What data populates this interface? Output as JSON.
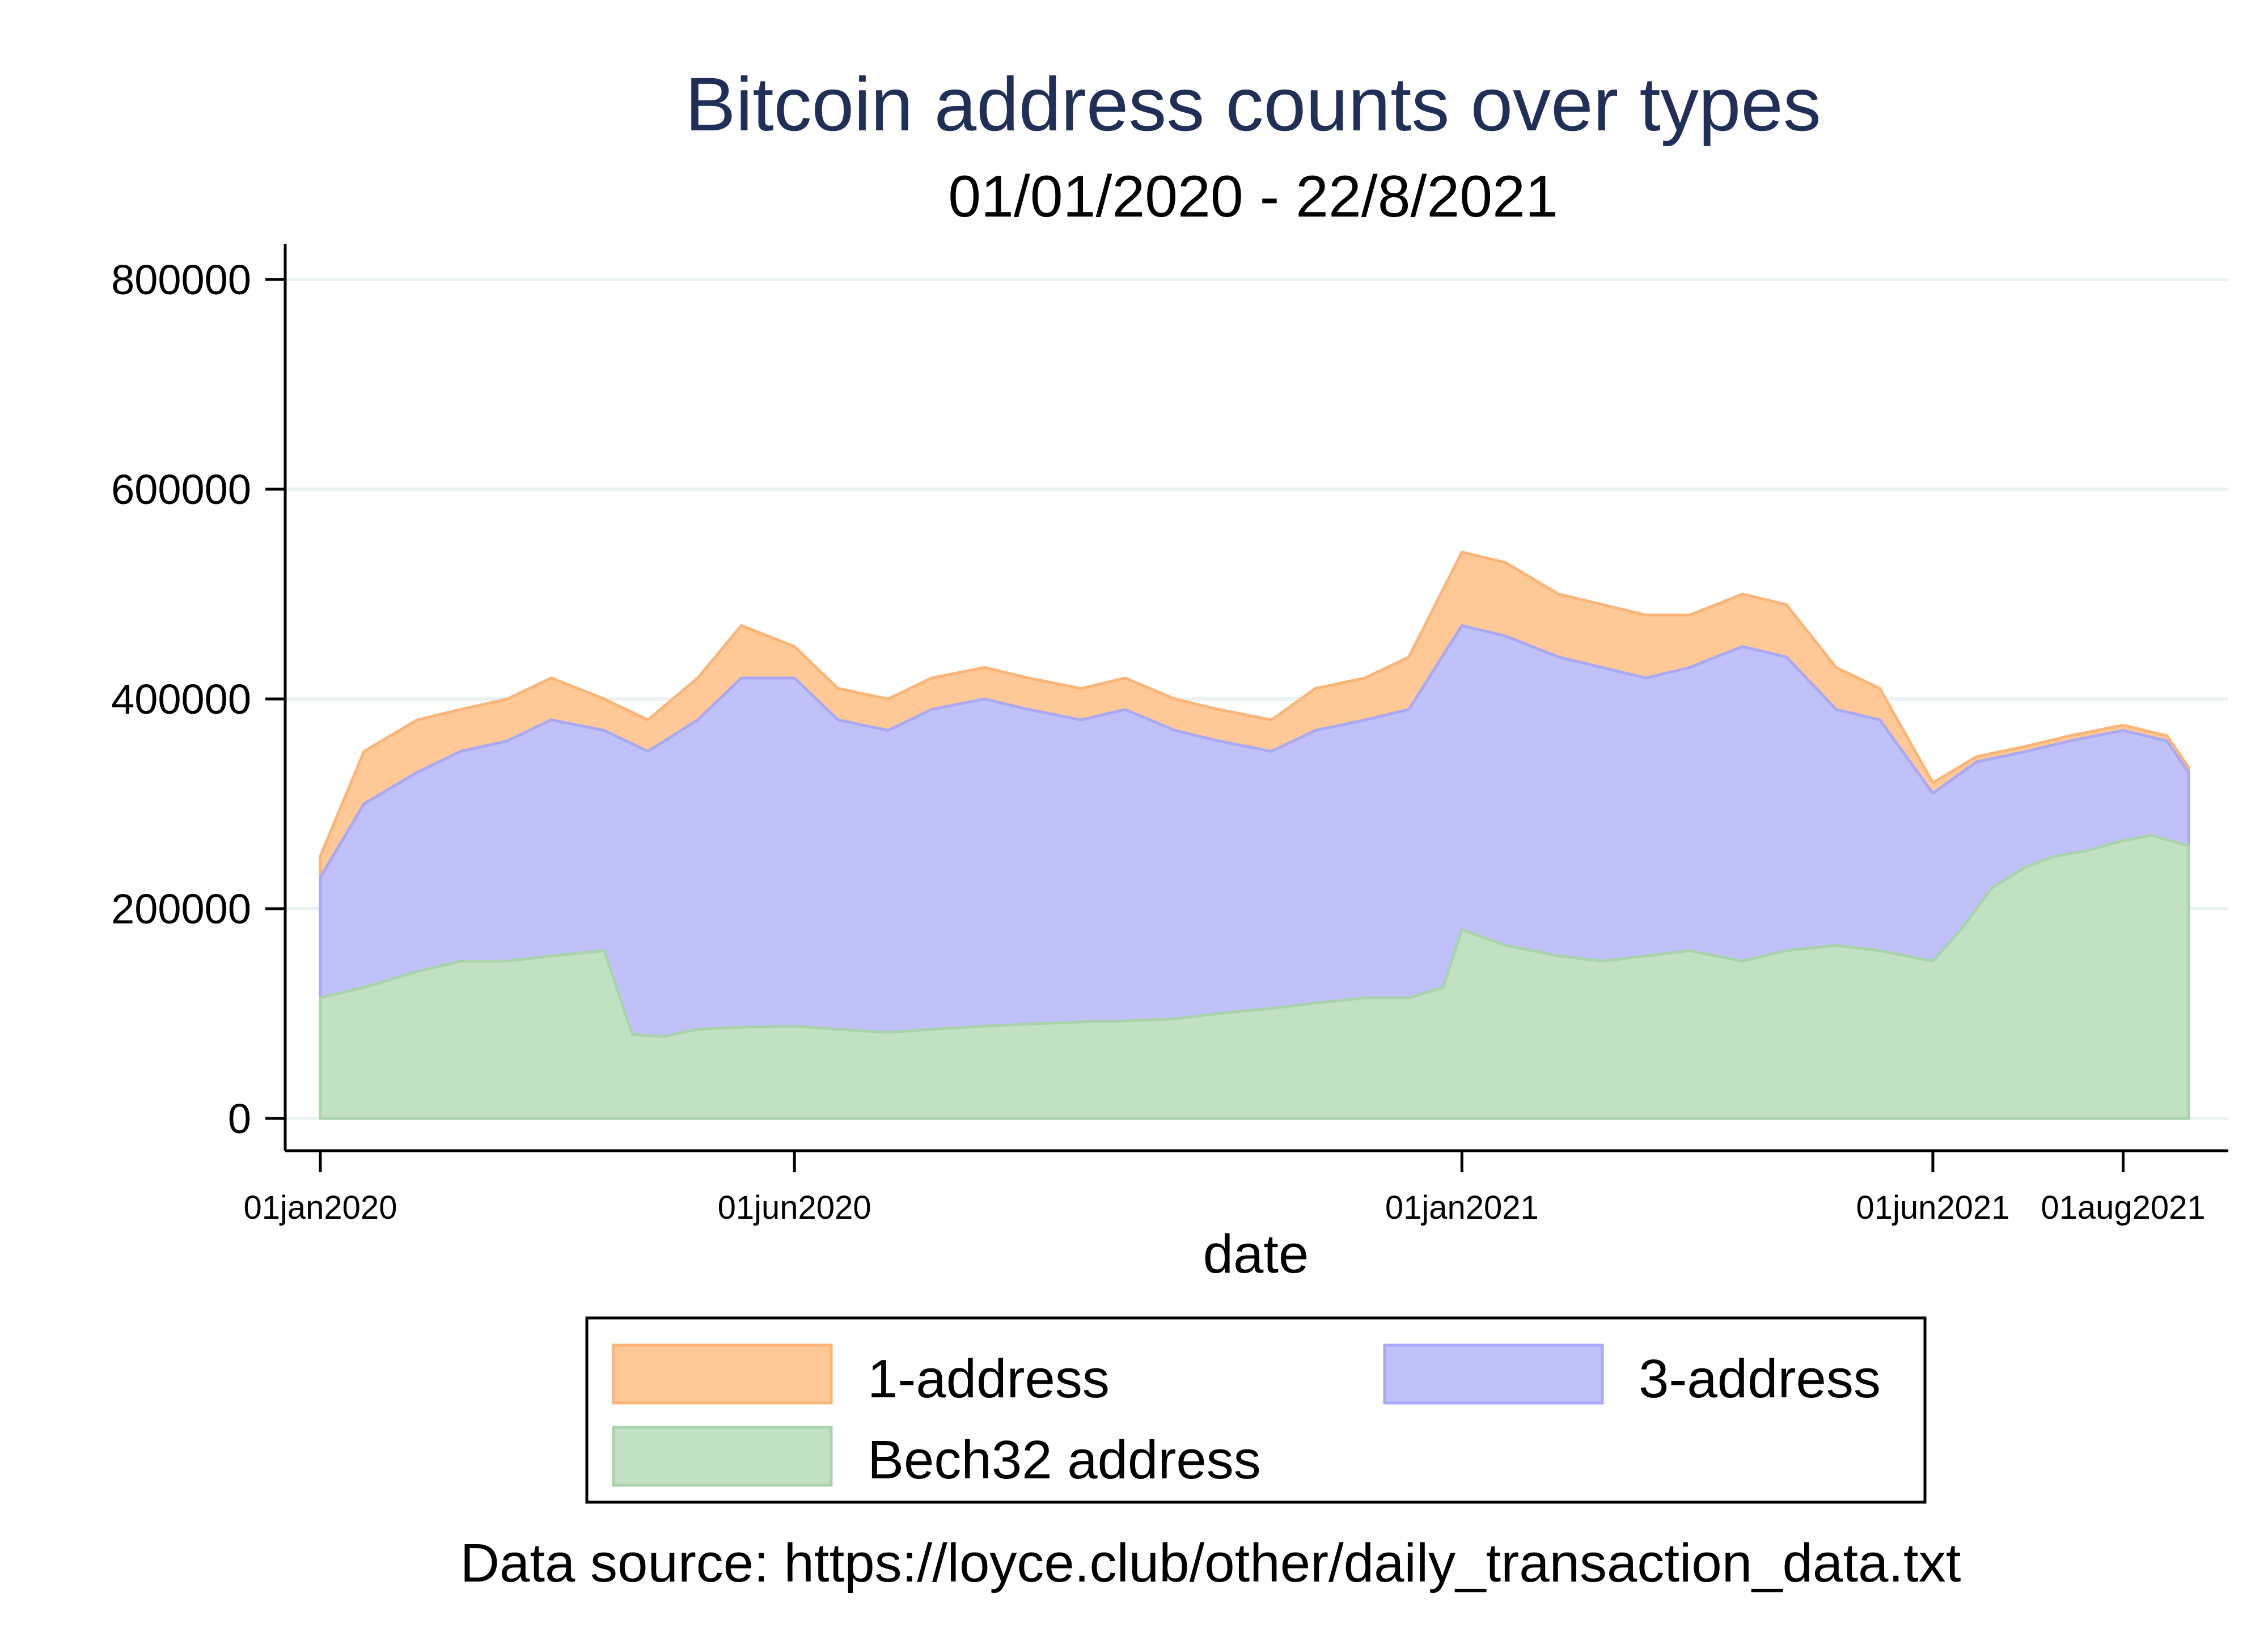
{
  "chart_data": {
    "type": "area",
    "stacked": true,
    "title": "Bitcoin address counts over types",
    "subtitle": "01/01/2020 - 22/8/2021",
    "xlabel": "date",
    "ylabel": "",
    "ylim": [
      0,
      800000
    ],
    "yticks": [
      {
        "value": 0,
        "label": "0"
      },
      {
        "value": 200000,
        "label": "200000"
      },
      {
        "value": 400000,
        "label": "400000"
      },
      {
        "value": 600000,
        "label": "600000"
      },
      {
        "value": 800000,
        "label": "800000"
      }
    ],
    "xlim": [
      "2020-01-01",
      "2021-08-22"
    ],
    "xticks": [
      {
        "value": "2020-01-01",
        "label": "01jan2020"
      },
      {
        "value": "2020-06-01",
        "label": "01jun2020"
      },
      {
        "value": "2021-01-01",
        "label": "01jan2021"
      },
      {
        "value": "2021-06-01",
        "label": "01jun2021"
      },
      {
        "value": "2021-08-01",
        "label": "01aug2021"
      }
    ],
    "grid": true,
    "legend_position": "bottom",
    "note": "Data source: https://loyce.club/other/daily_transaction_data.txt",
    "series": [
      {
        "name": "Bech32 address",
        "color": "#c2e1c3",
        "stroke": "#a9d4ab",
        "points": [
          [
            "2020-01-01",
            115000
          ],
          [
            "2020-01-15",
            125000
          ],
          [
            "2020-02-01",
            140000
          ],
          [
            "2020-02-15",
            150000
          ],
          [
            "2020-03-01",
            150000
          ],
          [
            "2020-03-15",
            155000
          ],
          [
            "2020-04-01",
            160000
          ],
          [
            "2020-04-10",
            80000
          ],
          [
            "2020-04-20",
            78000
          ],
          [
            "2020-05-01",
            85000
          ],
          [
            "2020-05-15",
            87000
          ],
          [
            "2020-06-01",
            88000
          ],
          [
            "2020-06-15",
            85000
          ],
          [
            "2020-07-01",
            82000
          ],
          [
            "2020-07-15",
            85000
          ],
          [
            "2020-08-01",
            88000
          ],
          [
            "2020-08-15",
            90000
          ],
          [
            "2020-09-01",
            92000
          ],
          [
            "2020-09-15",
            93000
          ],
          [
            "2020-10-01",
            95000
          ],
          [
            "2020-10-15",
            100000
          ],
          [
            "2020-11-01",
            105000
          ],
          [
            "2020-11-15",
            110000
          ],
          [
            "2020-12-01",
            115000
          ],
          [
            "2020-12-15",
            115000
          ],
          [
            "2020-12-26",
            125000
          ],
          [
            "2021-01-01",
            180000
          ],
          [
            "2021-01-15",
            165000
          ],
          [
            "2021-02-01",
            155000
          ],
          [
            "2021-02-15",
            150000
          ],
          [
            "2021-03-01",
            155000
          ],
          [
            "2021-03-15",
            160000
          ],
          [
            "2021-04-01",
            150000
          ],
          [
            "2021-04-15",
            160000
          ],
          [
            "2021-05-01",
            165000
          ],
          [
            "2021-05-15",
            160000
          ],
          [
            "2021-06-01",
            150000
          ],
          [
            "2021-06-10",
            180000
          ],
          [
            "2021-06-20",
            220000
          ],
          [
            "2021-07-01",
            240000
          ],
          [
            "2021-07-10",
            250000
          ],
          [
            "2021-07-20",
            255000
          ],
          [
            "2021-08-01",
            265000
          ],
          [
            "2021-08-10",
            270000
          ],
          [
            "2021-08-22",
            260000
          ]
        ]
      },
      {
        "name": "3-address",
        "color": "#c1c1fa",
        "stroke": "#a9a9f5",
        "points": [
          [
            "2020-01-01",
            230000
          ],
          [
            "2020-01-15",
            300000
          ],
          [
            "2020-02-01",
            330000
          ],
          [
            "2020-02-15",
            350000
          ],
          [
            "2020-03-01",
            360000
          ],
          [
            "2020-03-15",
            380000
          ],
          [
            "2020-04-01",
            370000
          ],
          [
            "2020-04-15",
            350000
          ],
          [
            "2020-05-01",
            380000
          ],
          [
            "2020-05-15",
            420000
          ],
          [
            "2020-06-01",
            420000
          ],
          [
            "2020-06-15",
            380000
          ],
          [
            "2020-07-01",
            370000
          ],
          [
            "2020-07-15",
            390000
          ],
          [
            "2020-08-01",
            400000
          ],
          [
            "2020-08-15",
            390000
          ],
          [
            "2020-09-01",
            380000
          ],
          [
            "2020-09-15",
            390000
          ],
          [
            "2020-10-01",
            370000
          ],
          [
            "2020-10-15",
            360000
          ],
          [
            "2020-11-01",
            350000
          ],
          [
            "2020-11-15",
            370000
          ],
          [
            "2020-12-01",
            380000
          ],
          [
            "2020-12-15",
            390000
          ],
          [
            "2021-01-01",
            470000
          ],
          [
            "2021-01-15",
            460000
          ],
          [
            "2021-02-01",
            440000
          ],
          [
            "2021-02-15",
            430000
          ],
          [
            "2021-03-01",
            420000
          ],
          [
            "2021-03-15",
            430000
          ],
          [
            "2021-04-01",
            450000
          ],
          [
            "2021-04-15",
            440000
          ],
          [
            "2021-05-01",
            390000
          ],
          [
            "2021-05-15",
            380000
          ],
          [
            "2021-06-01",
            310000
          ],
          [
            "2021-06-15",
            340000
          ],
          [
            "2021-07-01",
            350000
          ],
          [
            "2021-07-15",
            360000
          ],
          [
            "2021-08-01",
            370000
          ],
          [
            "2021-08-15",
            360000
          ],
          [
            "2021-08-22",
            330000
          ]
        ]
      },
      {
        "name": "1-address",
        "color": "#fec897",
        "stroke": "#fbb577",
        "points": [
          [
            "2020-01-01",
            250000
          ],
          [
            "2020-01-15",
            350000
          ],
          [
            "2020-02-01",
            380000
          ],
          [
            "2020-02-15",
            390000
          ],
          [
            "2020-03-01",
            400000
          ],
          [
            "2020-03-15",
            420000
          ],
          [
            "2020-04-01",
            400000
          ],
          [
            "2020-04-15",
            380000
          ],
          [
            "2020-05-01",
            420000
          ],
          [
            "2020-05-15",
            470000
          ],
          [
            "2020-06-01",
            450000
          ],
          [
            "2020-06-15",
            410000
          ],
          [
            "2020-07-01",
            400000
          ],
          [
            "2020-07-15",
            420000
          ],
          [
            "2020-08-01",
            430000
          ],
          [
            "2020-08-15",
            420000
          ],
          [
            "2020-09-01",
            410000
          ],
          [
            "2020-09-15",
            420000
          ],
          [
            "2020-10-01",
            400000
          ],
          [
            "2020-10-15",
            390000
          ],
          [
            "2020-11-01",
            380000
          ],
          [
            "2020-11-15",
            410000
          ],
          [
            "2020-12-01",
            420000
          ],
          [
            "2020-12-15",
            440000
          ],
          [
            "2021-01-01",
            540000
          ],
          [
            "2021-01-15",
            530000
          ],
          [
            "2021-02-01",
            500000
          ],
          [
            "2021-02-15",
            490000
          ],
          [
            "2021-03-01",
            480000
          ],
          [
            "2021-03-15",
            480000
          ],
          [
            "2021-04-01",
            500000
          ],
          [
            "2021-04-15",
            490000
          ],
          [
            "2021-05-01",
            430000
          ],
          [
            "2021-05-15",
            410000
          ],
          [
            "2021-06-01",
            320000
          ],
          [
            "2021-06-15",
            345000
          ],
          [
            "2021-07-01",
            355000
          ],
          [
            "2021-07-15",
            365000
          ],
          [
            "2021-08-01",
            375000
          ],
          [
            "2021-08-15",
            365000
          ],
          [
            "2021-08-22",
            335000
          ]
        ]
      }
    ],
    "legend": [
      {
        "label": "1-address",
        "color": "#fec897",
        "stroke": "#fbb577"
      },
      {
        "label": "3-address",
        "color": "#c1c1fa",
        "stroke": "#a9a9f5"
      },
      {
        "label": "Bech32 address",
        "color": "#c2e1c3",
        "stroke": "#a9d4ab"
      }
    ]
  }
}
